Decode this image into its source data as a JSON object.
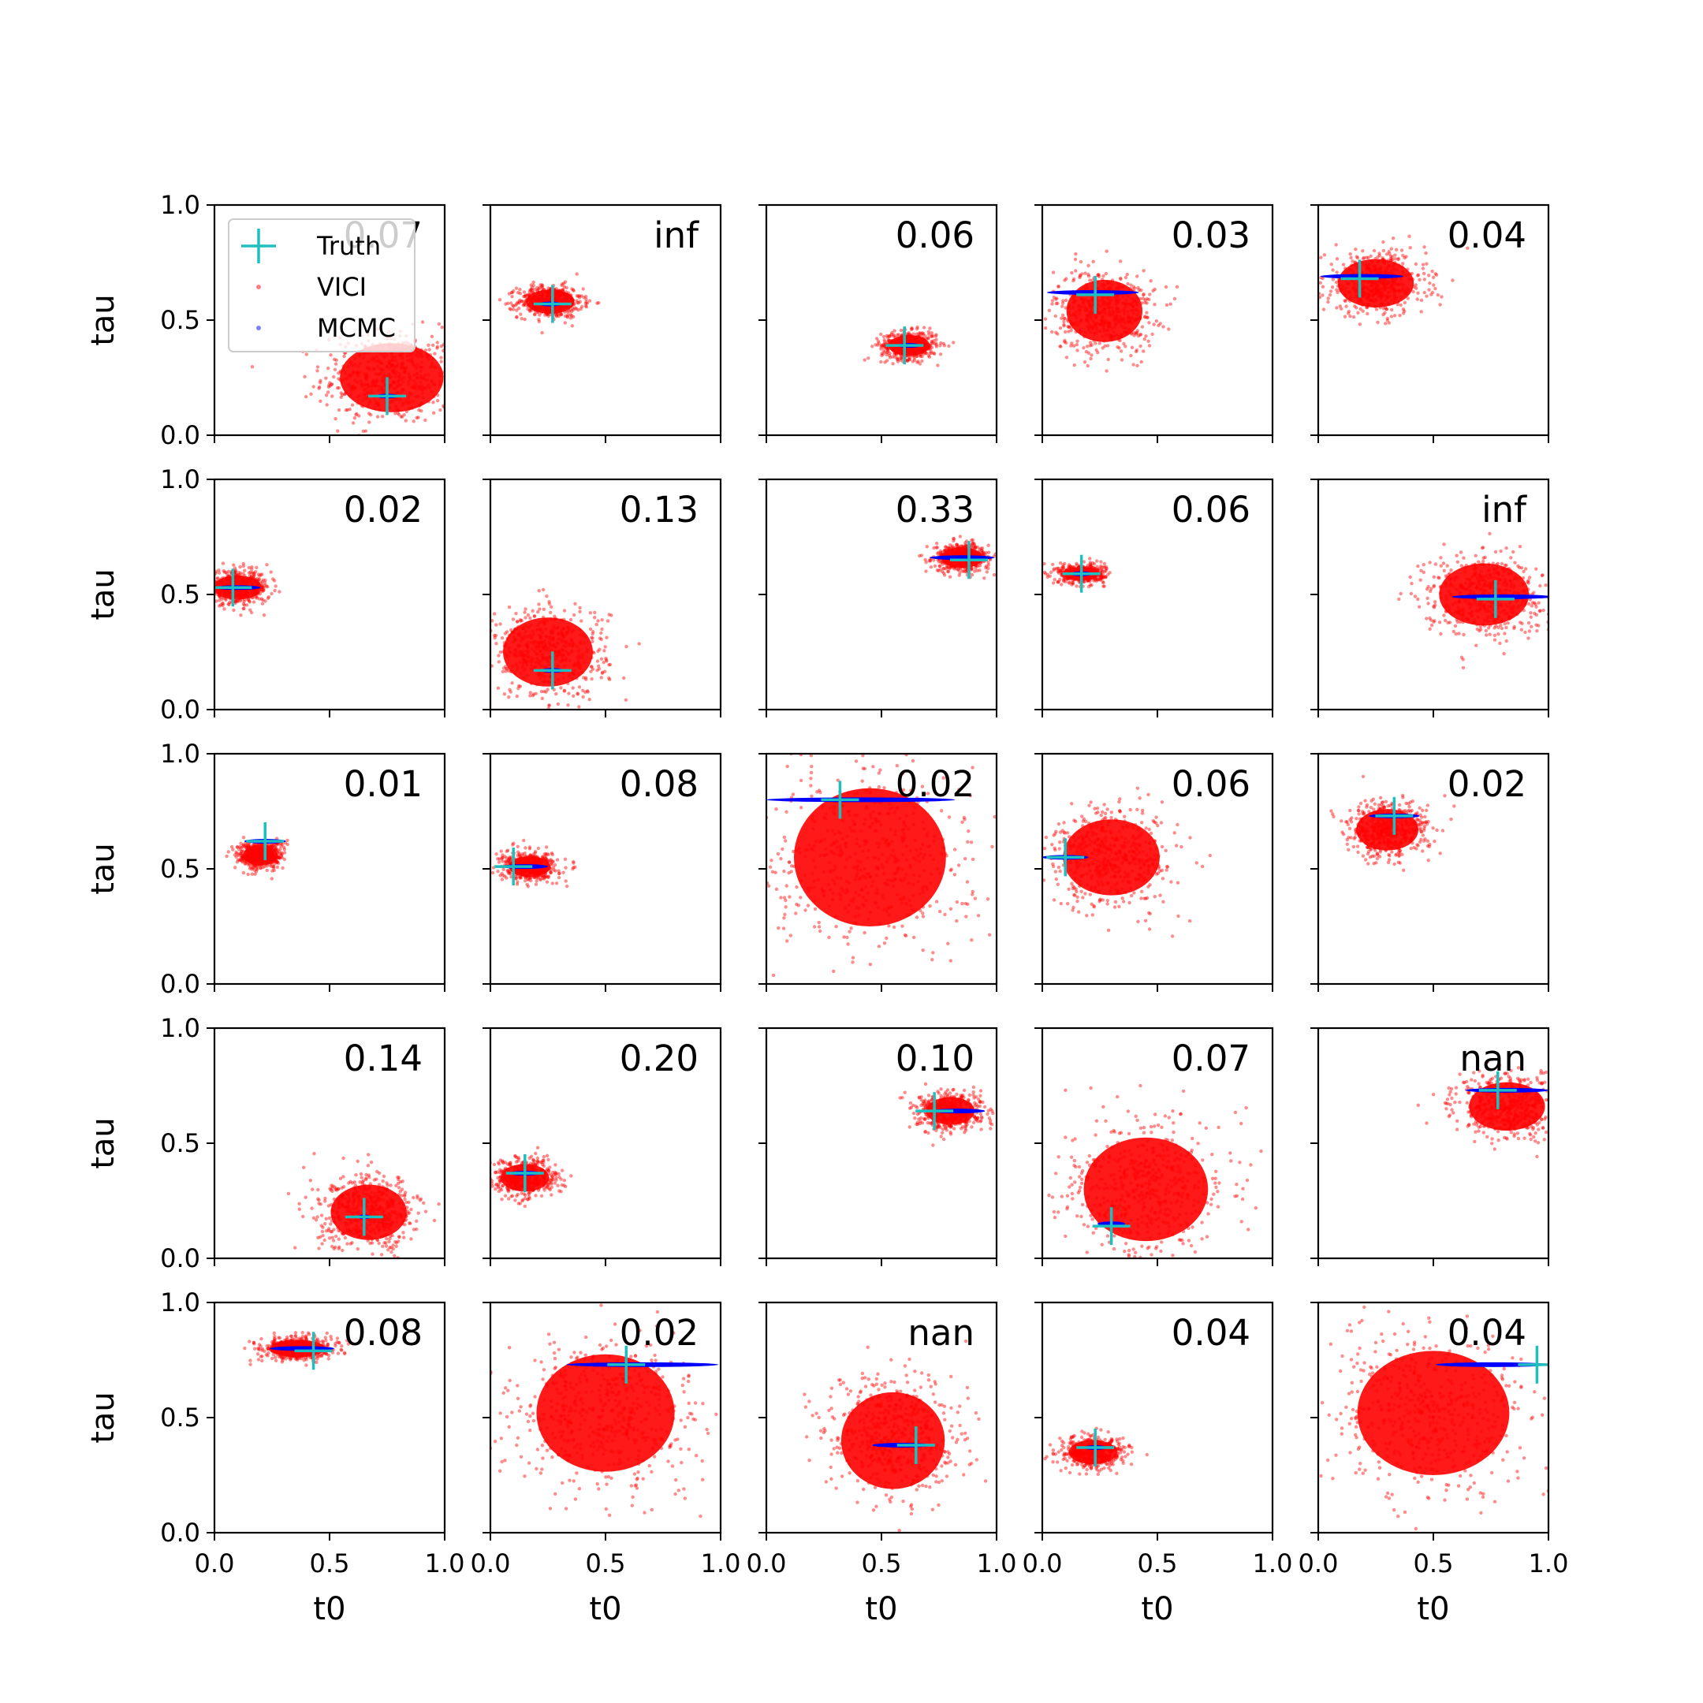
{
  "chart_data": {
    "type": "scatter",
    "layout": {
      "rows": 5,
      "cols": 5
    },
    "xlabel": "t0",
    "ylabel": "tau",
    "xlim": [
      0,
      1
    ],
    "ylim": [
      0,
      1
    ],
    "xticks": [
      "0.0",
      "0.5",
      "1.0"
    ],
    "yticks": [
      "0.0",
      "0.5",
      "1.0"
    ],
    "colors": {
      "truth": "#1fbfbf",
      "vici": "#ff0000",
      "mcmc": "#0000ff",
      "axes": "#000000"
    },
    "legend": {
      "location": "upper-left of first panel",
      "entries": [
        {
          "label": "Truth",
          "marker": "plus",
          "color": "#1fbfbf"
        },
        {
          "label": "VICI",
          "marker": "dot",
          "color": "#ff0000"
        },
        {
          "label": "MCMC",
          "marker": "dot",
          "color": "#0000ff"
        }
      ]
    },
    "panels": [
      {
        "label": "0.07",
        "truth": [
          0.75,
          0.17
        ],
        "vici": {
          "mean": [
            0.77,
            0.25
          ],
          "std": [
            0.15,
            0.1
          ]
        },
        "mcmc": {
          "mean": [
            0.75,
            0.17
          ],
          "halfwidth": [
            0.05,
            0.008
          ]
        }
      },
      {
        "label": "inf",
        "truth": [
          0.27,
          0.57
        ],
        "vici": {
          "mean": [
            0.26,
            0.58
          ],
          "std": [
            0.07,
            0.035
          ]
        },
        "mcmc": {
          "mean": [
            0.26,
            0.57
          ],
          "halfwidth": [
            0.05,
            0.008
          ]
        }
      },
      {
        "label": "0.06",
        "truth": [
          0.6,
          0.39
        ],
        "vici": {
          "mean": [
            0.62,
            0.39
          ],
          "std": [
            0.06,
            0.03
          ]
        },
        "mcmc": {
          "mean": [
            0.62,
            0.39
          ],
          "halfwidth": [
            0.05,
            0.008
          ]
        }
      },
      {
        "label": "0.03",
        "truth": [
          0.23,
          0.61
        ],
        "vici": {
          "mean": [
            0.27,
            0.54
          ],
          "std": [
            0.11,
            0.09
          ]
        },
        "mcmc": {
          "mean": [
            0.22,
            0.62
          ],
          "halfwidth": [
            0.2,
            0.008
          ]
        }
      },
      {
        "label": "0.04",
        "truth": [
          0.18,
          0.68
        ],
        "vici": {
          "mean": [
            0.25,
            0.66
          ],
          "std": [
            0.11,
            0.07
          ]
        },
        "mcmc": {
          "mean": [
            0.19,
            0.69
          ],
          "halfwidth": [
            0.18,
            0.008
          ]
        }
      },
      {
        "label": "0.02",
        "truth": [
          0.08,
          0.53
        ],
        "vici": {
          "mean": [
            0.1,
            0.53
          ],
          "std": [
            0.07,
            0.035
          ]
        },
        "mcmc": {
          "mean": [
            0.1,
            0.53
          ],
          "halfwidth": [
            0.1,
            0.008
          ]
        }
      },
      {
        "label": "0.13",
        "truth": [
          0.27,
          0.17
        ],
        "vici": {
          "mean": [
            0.25,
            0.25
          ],
          "std": [
            0.13,
            0.1
          ]
        },
        "mcmc": {
          "mean": [
            0.27,
            0.17
          ],
          "halfwidth": [
            0.05,
            0.008
          ]
        }
      },
      {
        "label": "0.33",
        "truth": [
          0.88,
          0.65
        ],
        "vici": {
          "mean": [
            0.85,
            0.66
          ],
          "std": [
            0.06,
            0.03
          ]
        },
        "mcmc": {
          "mean": [
            0.85,
            0.66
          ],
          "halfwidth": [
            0.14,
            0.008
          ]
        }
      },
      {
        "label": "0.06",
        "truth": [
          0.17,
          0.59
        ],
        "vici": {
          "mean": [
            0.17,
            0.59
          ],
          "std": [
            0.05,
            0.02
          ]
        },
        "mcmc": {
          "mean": [
            0.17,
            0.59
          ],
          "halfwidth": [
            0.05,
            0.008
          ]
        }
      },
      {
        "label": "inf",
        "truth": [
          0.77,
          0.48
        ],
        "vici": {
          "mean": [
            0.72,
            0.5
          ],
          "std": [
            0.13,
            0.09
          ]
        },
        "mcmc": {
          "mean": [
            0.8,
            0.49
          ],
          "halfwidth": [
            0.22,
            0.008
          ]
        }
      },
      {
        "label": "0.01",
        "truth": [
          0.22,
          0.62
        ],
        "vici": {
          "mean": [
            0.2,
            0.56
          ],
          "std": [
            0.05,
            0.03
          ]
        },
        "mcmc": {
          "mean": [
            0.22,
            0.62
          ],
          "halfwidth": [
            0.09,
            0.008
          ]
        }
      },
      {
        "label": "0.08",
        "truth": [
          0.1,
          0.51
        ],
        "vici": {
          "mean": [
            0.17,
            0.51
          ],
          "std": [
            0.06,
            0.03
          ]
        },
        "mcmc": {
          "mean": [
            0.15,
            0.51
          ],
          "halfwidth": [
            0.1,
            0.008
          ]
        }
      },
      {
        "label": "0.02",
        "truth": [
          0.32,
          0.8
        ],
        "vici": {
          "mean": [
            0.45,
            0.55
          ],
          "std": [
            0.22,
            0.2
          ]
        },
        "mcmc": {
          "mean": [
            0.41,
            0.8
          ],
          "halfwidth": [
            0.41,
            0.008
          ]
        }
      },
      {
        "label": "0.06",
        "truth": [
          0.1,
          0.55
        ],
        "vici": {
          "mean": [
            0.3,
            0.55
          ],
          "std": [
            0.14,
            0.11
          ]
        },
        "mcmc": {
          "mean": [
            0.1,
            0.55
          ],
          "halfwidth": [
            0.1,
            0.008
          ]
        }
      },
      {
        "label": "0.02",
        "truth": [
          0.33,
          0.73
        ],
        "vici": {
          "mean": [
            0.3,
            0.67
          ],
          "std": [
            0.09,
            0.06
          ]
        },
        "mcmc": {
          "mean": [
            0.33,
            0.73
          ],
          "halfwidth": [
            0.11,
            0.008
          ]
        }
      },
      {
        "label": "0.14",
        "truth": [
          0.65,
          0.18
        ],
        "vici": {
          "mean": [
            0.67,
            0.2
          ],
          "std": [
            0.11,
            0.08
          ]
        },
        "mcmc": {
          "mean": [
            0.65,
            0.18
          ],
          "halfwidth": [
            0.03,
            0.008
          ]
        }
      },
      {
        "label": "0.20",
        "truth": [
          0.15,
          0.37
        ],
        "vici": {
          "mean": [
            0.15,
            0.35
          ],
          "std": [
            0.07,
            0.04
          ]
        },
        "mcmc": {
          "mean": [
            0.15,
            0.37
          ],
          "halfwidth": [
            0.07,
            0.008
          ]
        }
      },
      {
        "label": "0.10",
        "truth": [
          0.73,
          0.64
        ],
        "vici": {
          "mean": [
            0.8,
            0.64
          ],
          "std": [
            0.07,
            0.04
          ]
        },
        "mcmc": {
          "mean": [
            0.83,
            0.64
          ],
          "halfwidth": [
            0.12,
            0.008
          ]
        }
      },
      {
        "label": "0.07",
        "truth": [
          0.3,
          0.14
        ],
        "vici": {
          "mean": [
            0.45,
            0.3
          ],
          "std": [
            0.18,
            0.15
          ]
        },
        "mcmc": {
          "mean": [
            0.3,
            0.15
          ],
          "halfwidth": [
            0.06,
            0.008
          ]
        }
      },
      {
        "label": "nan",
        "truth": [
          0.78,
          0.73
        ],
        "vici": {
          "mean": [
            0.82,
            0.66
          ],
          "std": [
            0.11,
            0.07
          ]
        },
        "mcmc": {
          "mean": [
            0.82,
            0.73
          ],
          "halfwidth": [
            0.18,
            0.008
          ]
        }
      },
      {
        "label": "0.08",
        "truth": [
          0.43,
          0.79
        ],
        "vici": {
          "mean": [
            0.36,
            0.8
          ],
          "std": [
            0.08,
            0.025
          ]
        },
        "mcmc": {
          "mean": [
            0.38,
            0.8
          ],
          "halfwidth": [
            0.14,
            0.008
          ]
        }
      },
      {
        "label": "0.02",
        "truth": [
          0.59,
          0.73
        ],
        "vici": {
          "mean": [
            0.5,
            0.52
          ],
          "std": [
            0.2,
            0.17
          ]
        },
        "mcmc": {
          "mean": [
            0.66,
            0.73
          ],
          "halfwidth": [
            0.33,
            0.008
          ]
        }
      },
      {
        "label": "nan",
        "truth": [
          0.65,
          0.38
        ],
        "vici": {
          "mean": [
            0.55,
            0.4
          ],
          "std": [
            0.15,
            0.14
          ]
        },
        "mcmc": {
          "mean": [
            0.59,
            0.38
          ],
          "halfwidth": [
            0.13,
            0.008
          ]
        }
      },
      {
        "label": "0.04",
        "truth": [
          0.23,
          0.37
        ],
        "vici": {
          "mean": [
            0.22,
            0.35
          ],
          "std": [
            0.07,
            0.035
          ]
        },
        "mcmc": {
          "mean": [
            0.23,
            0.37
          ],
          "halfwidth": [
            0.05,
            0.008
          ]
        }
      },
      {
        "label": "0.04",
        "truth": [
          0.95,
          0.73
        ],
        "vici": {
          "mean": [
            0.5,
            0.52
          ],
          "std": [
            0.22,
            0.18
          ]
        },
        "mcmc": {
          "mean": [
            0.76,
            0.73
          ],
          "halfwidth": [
            0.25,
            0.008
          ]
        }
      }
    ]
  }
}
